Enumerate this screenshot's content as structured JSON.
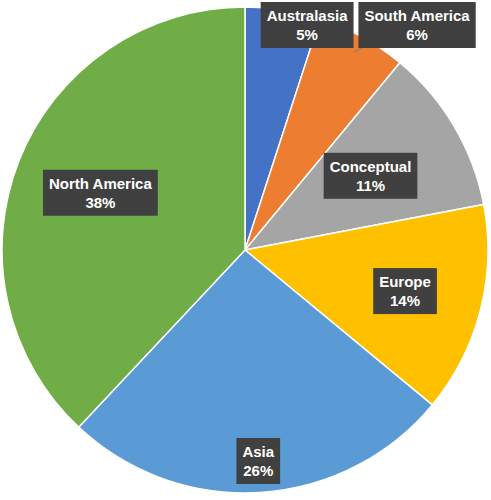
{
  "chart_data": {
    "type": "pie",
    "categories": [
      "Australasia",
      "South America",
      "Conceptual",
      "Europe",
      "Asia",
      "North America"
    ],
    "values": [
      5,
      6,
      11,
      14,
      26,
      38
    ],
    "value_labels": [
      "5%",
      "6%",
      "11%",
      "14%",
      "26%",
      "38%"
    ],
    "colors": [
      "#4472c4",
      "#ed7d31",
      "#a5a5a5",
      "#ffc000",
      "#5b9bd5",
      "#70ad47"
    ],
    "data_labels": true
  }
}
